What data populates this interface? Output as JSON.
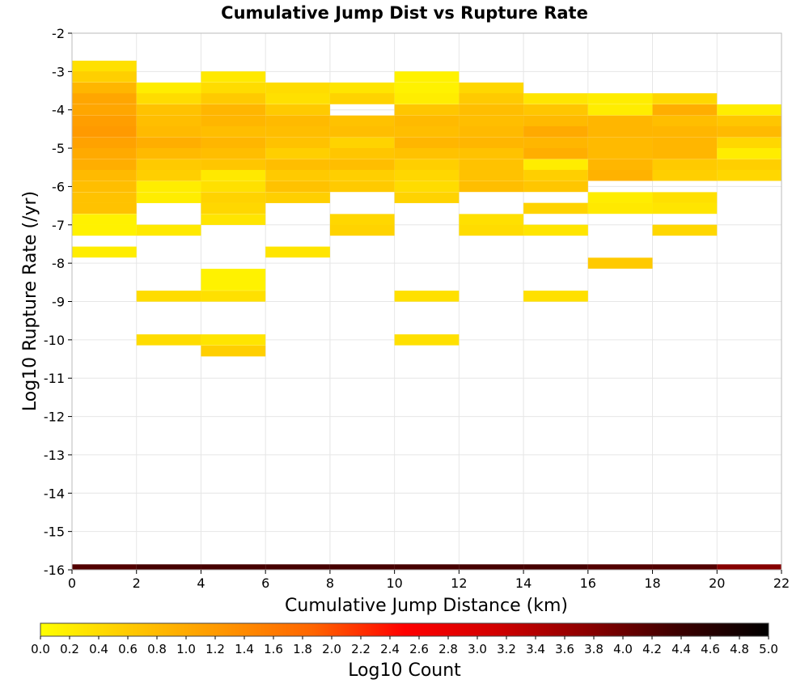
{
  "chart_data": {
    "type": "heatmap",
    "title": "Cumulative Jump Dist vs Rupture Rate",
    "xlabel": "Cumulative Jump Distance (km)",
    "ylabel": "Log10 Rupture Rate (/yr)",
    "xlim": [
      0,
      22
    ],
    "ylim": [
      -16,
      -2
    ],
    "x_ticks": [
      "0",
      "2",
      "4",
      "6",
      "8",
      "10",
      "12",
      "14",
      "16",
      "18",
      "20",
      "22"
    ],
    "y_ticks": [
      "-2",
      "-3",
      "-4",
      "-5",
      "-6",
      "-7",
      "-8",
      "-9",
      "-10",
      "-11",
      "-12",
      "-13",
      "-14",
      "-15",
      "-16"
    ],
    "colorbar": {
      "label": "Log10 Count",
      "range": [
        0,
        5
      ],
      "ticks": [
        "0.0",
        "0.2",
        "0.4",
        "0.6",
        "0.8",
        "1.0",
        "1.2",
        "1.4",
        "1.6",
        "1.8",
        "2.0",
        "2.2",
        "2.4",
        "2.6",
        "2.8",
        "3.0",
        "3.2",
        "3.4",
        "3.6",
        "3.8",
        "4.0",
        "4.2",
        "4.4",
        "4.6",
        "4.8",
        "5.0"
      ],
      "colors": [
        "#ffff00",
        "#ffc800",
        "#ff9600",
        "#ff6400",
        "#ff0000",
        "#d20000",
        "#8c0000",
        "#3c0000",
        "#000000"
      ]
    },
    "x_bin_width": 2,
    "y_bin_height": 0.286,
    "cells": [
      [
        0,
        -2.86,
        0.35
      ],
      [
        0,
        -3.14,
        0.55
      ],
      [
        0,
        -3.43,
        0.85
      ],
      [
        0,
        -3.71,
        1.05
      ],
      [
        0,
        -4.0,
        1.05
      ],
      [
        0,
        -4.29,
        1.15
      ],
      [
        0,
        -4.57,
        1.2
      ],
      [
        0,
        -4.86,
        1.1
      ],
      [
        0,
        -5.14,
        1.0
      ],
      [
        0,
        -5.43,
        0.95
      ],
      [
        0,
        -5.71,
        0.8
      ],
      [
        0,
        -6.0,
        0.75
      ],
      [
        0,
        -6.29,
        0.7
      ],
      [
        0,
        -6.57,
        0.7
      ],
      [
        0,
        -6.86,
        0.15
      ],
      [
        0,
        -7.14,
        0.15
      ],
      [
        0,
        -7.71,
        0.2
      ],
      [
        2,
        -3.43,
        0.2
      ],
      [
        2,
        -3.71,
        0.4
      ],
      [
        2,
        -4.0,
        0.7
      ],
      [
        2,
        -4.29,
        0.75
      ],
      [
        2,
        -4.57,
        0.8
      ],
      [
        2,
        -4.86,
        0.95
      ],
      [
        2,
        -5.14,
        0.8
      ],
      [
        2,
        -5.43,
        0.6
      ],
      [
        2,
        -5.71,
        0.55
      ],
      [
        2,
        -6.0,
        0.2
      ],
      [
        2,
        -6.29,
        0.2
      ],
      [
        2,
        -7.14,
        0.25
      ],
      [
        2,
        -8.86,
        0.4
      ],
      [
        2,
        -10.0,
        0.4
      ],
      [
        4,
        -3.14,
        0.25
      ],
      [
        4,
        -3.43,
        0.4
      ],
      [
        4,
        -3.71,
        0.6
      ],
      [
        4,
        -4.0,
        0.85
      ],
      [
        4,
        -4.29,
        0.85
      ],
      [
        4,
        -4.57,
        0.75
      ],
      [
        4,
        -4.86,
        0.85
      ],
      [
        4,
        -5.14,
        0.75
      ],
      [
        4,
        -5.43,
        0.65
      ],
      [
        4,
        -5.71,
        0.25
      ],
      [
        4,
        -6.0,
        0.35
      ],
      [
        4,
        -6.29,
        0.5
      ],
      [
        4,
        -6.57,
        0.45
      ],
      [
        4,
        -6.86,
        0.3
      ],
      [
        4,
        -8.29,
        0.15
      ],
      [
        4,
        -8.57,
        0.15
      ],
      [
        4,
        -8.86,
        0.35
      ],
      [
        4,
        -10.0,
        0.3
      ],
      [
        4,
        -10.29,
        0.55
      ],
      [
        6,
        -3.43,
        0.4
      ],
      [
        6,
        -3.71,
        0.35
      ],
      [
        6,
        -4.0,
        0.6
      ],
      [
        6,
        -4.29,
        0.8
      ],
      [
        6,
        -4.57,
        0.75
      ],
      [
        6,
        -4.86,
        0.7
      ],
      [
        6,
        -5.14,
        0.55
      ],
      [
        6,
        -5.43,
        0.75
      ],
      [
        6,
        -5.71,
        0.6
      ],
      [
        6,
        -6.0,
        0.7
      ],
      [
        6,
        -6.29,
        0.55
      ],
      [
        6,
        -7.71,
        0.3
      ],
      [
        8,
        -3.43,
        0.3
      ],
      [
        8,
        -3.71,
        0.5
      ],
      [
        8,
        -4.29,
        0.7
      ],
      [
        8,
        -4.57,
        0.75
      ],
      [
        8,
        -4.86,
        0.5
      ],
      [
        8,
        -5.14,
        0.65
      ],
      [
        8,
        -5.43,
        0.75
      ],
      [
        8,
        -5.71,
        0.55
      ],
      [
        8,
        -6.0,
        0.6
      ],
      [
        8,
        -6.86,
        0.45
      ],
      [
        8,
        -7.14,
        0.5
      ],
      [
        10,
        -3.14,
        0.15
      ],
      [
        10,
        -3.43,
        0.15
      ],
      [
        10,
        -3.71,
        0.2
      ],
      [
        10,
        -4.0,
        0.65
      ],
      [
        10,
        -4.29,
        0.8
      ],
      [
        10,
        -4.57,
        0.75
      ],
      [
        10,
        -4.86,
        0.85
      ],
      [
        10,
        -5.14,
        0.7
      ],
      [
        10,
        -5.43,
        0.55
      ],
      [
        10,
        -5.71,
        0.45
      ],
      [
        10,
        -6.0,
        0.4
      ],
      [
        10,
        -6.29,
        0.5
      ],
      [
        10,
        -8.86,
        0.35
      ],
      [
        10,
        -10.0,
        0.35
      ],
      [
        12,
        -3.43,
        0.45
      ],
      [
        12,
        -3.71,
        0.6
      ],
      [
        12,
        -4.0,
        0.75
      ],
      [
        12,
        -4.29,
        0.75
      ],
      [
        12,
        -4.57,
        0.8
      ],
      [
        12,
        -4.86,
        0.85
      ],
      [
        12,
        -5.14,
        0.7
      ],
      [
        12,
        -5.43,
        0.7
      ],
      [
        12,
        -5.71,
        0.7
      ],
      [
        12,
        -6.0,
        0.75
      ],
      [
        12,
        -6.86,
        0.35
      ],
      [
        12,
        -7.14,
        0.4
      ],
      [
        14,
        -3.71,
        0.3
      ],
      [
        14,
        -4.0,
        0.65
      ],
      [
        14,
        -4.29,
        0.8
      ],
      [
        14,
        -4.57,
        1.0
      ],
      [
        14,
        -4.86,
        0.85
      ],
      [
        14,
        -5.14,
        0.95
      ],
      [
        14,
        -5.43,
        0.2
      ],
      [
        14,
        -5.71,
        0.55
      ],
      [
        14,
        -6.0,
        0.65
      ],
      [
        14,
        -6.57,
        0.5
      ],
      [
        14,
        -7.14,
        0.3
      ],
      [
        14,
        -8.86,
        0.35
      ],
      [
        16,
        -3.71,
        0.2
      ],
      [
        16,
        -4.0,
        0.2
      ],
      [
        16,
        -4.29,
        0.85
      ],
      [
        16,
        -4.57,
        0.85
      ],
      [
        16,
        -4.86,
        0.8
      ],
      [
        16,
        -5.14,
        0.8
      ],
      [
        16,
        -5.43,
        0.85
      ],
      [
        16,
        -5.71,
        0.9
      ],
      [
        16,
        -6.29,
        0.2
      ],
      [
        16,
        -6.57,
        0.25
      ],
      [
        16,
        -8.0,
        0.6
      ],
      [
        18,
        -3.71,
        0.45
      ],
      [
        18,
        -4.0,
        0.95
      ],
      [
        18,
        -4.29,
        0.75
      ],
      [
        18,
        -4.57,
        0.85
      ],
      [
        18,
        -4.86,
        0.85
      ],
      [
        18,
        -5.14,
        0.85
      ],
      [
        18,
        -5.43,
        0.6
      ],
      [
        18,
        -5.71,
        0.55
      ],
      [
        18,
        -6.29,
        0.35
      ],
      [
        18,
        -6.57,
        0.3
      ],
      [
        18,
        -7.14,
        0.45
      ],
      [
        20,
        -4.0,
        0.2
      ],
      [
        20,
        -4.29,
        0.65
      ],
      [
        20,
        -4.57,
        0.8
      ],
      [
        20,
        -4.86,
        0.45
      ],
      [
        20,
        -5.14,
        0.2
      ],
      [
        20,
        -5.43,
        0.55
      ],
      [
        20,
        -5.71,
        0.45
      ]
    ],
    "bottom_row": {
      "y": -16,
      "values": [
        4.2,
        4.3,
        4.3,
        4.3,
        4.3,
        4.3,
        4.3,
        4.3,
        4.2,
        4.2,
        3.8
      ]
    }
  }
}
